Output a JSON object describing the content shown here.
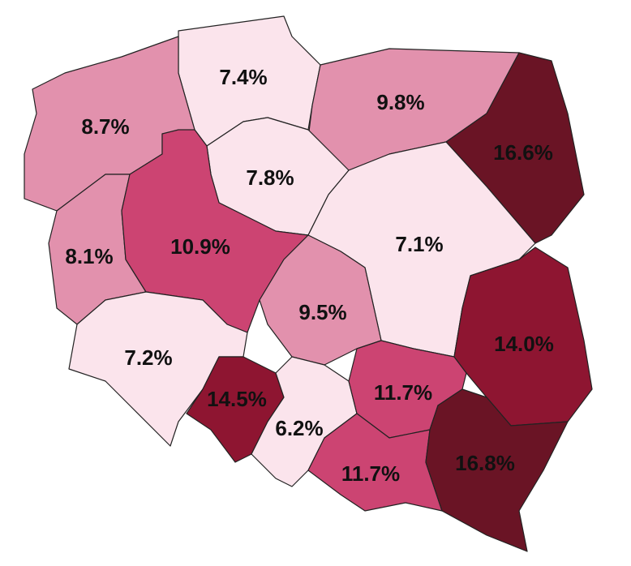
{
  "regions": [
    {
      "label": "7.4%",
      "color": "#fbe4ec"
    },
    {
      "label": "9.8%",
      "color": "#e291ad"
    },
    {
      "label": "16.6%",
      "color": "#6a1425"
    },
    {
      "label": "8.7%",
      "color": "#e291ad"
    },
    {
      "label": "7.8%",
      "color": "#fbe4ec"
    },
    {
      "label": "7.1%",
      "color": "#fbe4ec"
    },
    {
      "label": "8.1%",
      "color": "#e291ad"
    },
    {
      "label": "10.9%",
      "color": "#cc4472"
    },
    {
      "label": "9.5%",
      "color": "#e291ad"
    },
    {
      "label": "7.2%",
      "color": "#fbe4ec"
    },
    {
      "label": "14.5%",
      "color": "#8e1531"
    },
    {
      "label": "6.2%",
      "color": "#fbe4ec"
    },
    {
      "label": "11.7%",
      "color": "#cc4472"
    },
    {
      "label": "14.0%",
      "color": "#8e1531"
    },
    {
      "label": "11.7%",
      "color": "#cc4472"
    },
    {
      "label": "16.8%",
      "color": "#6a1425"
    }
  ]
}
